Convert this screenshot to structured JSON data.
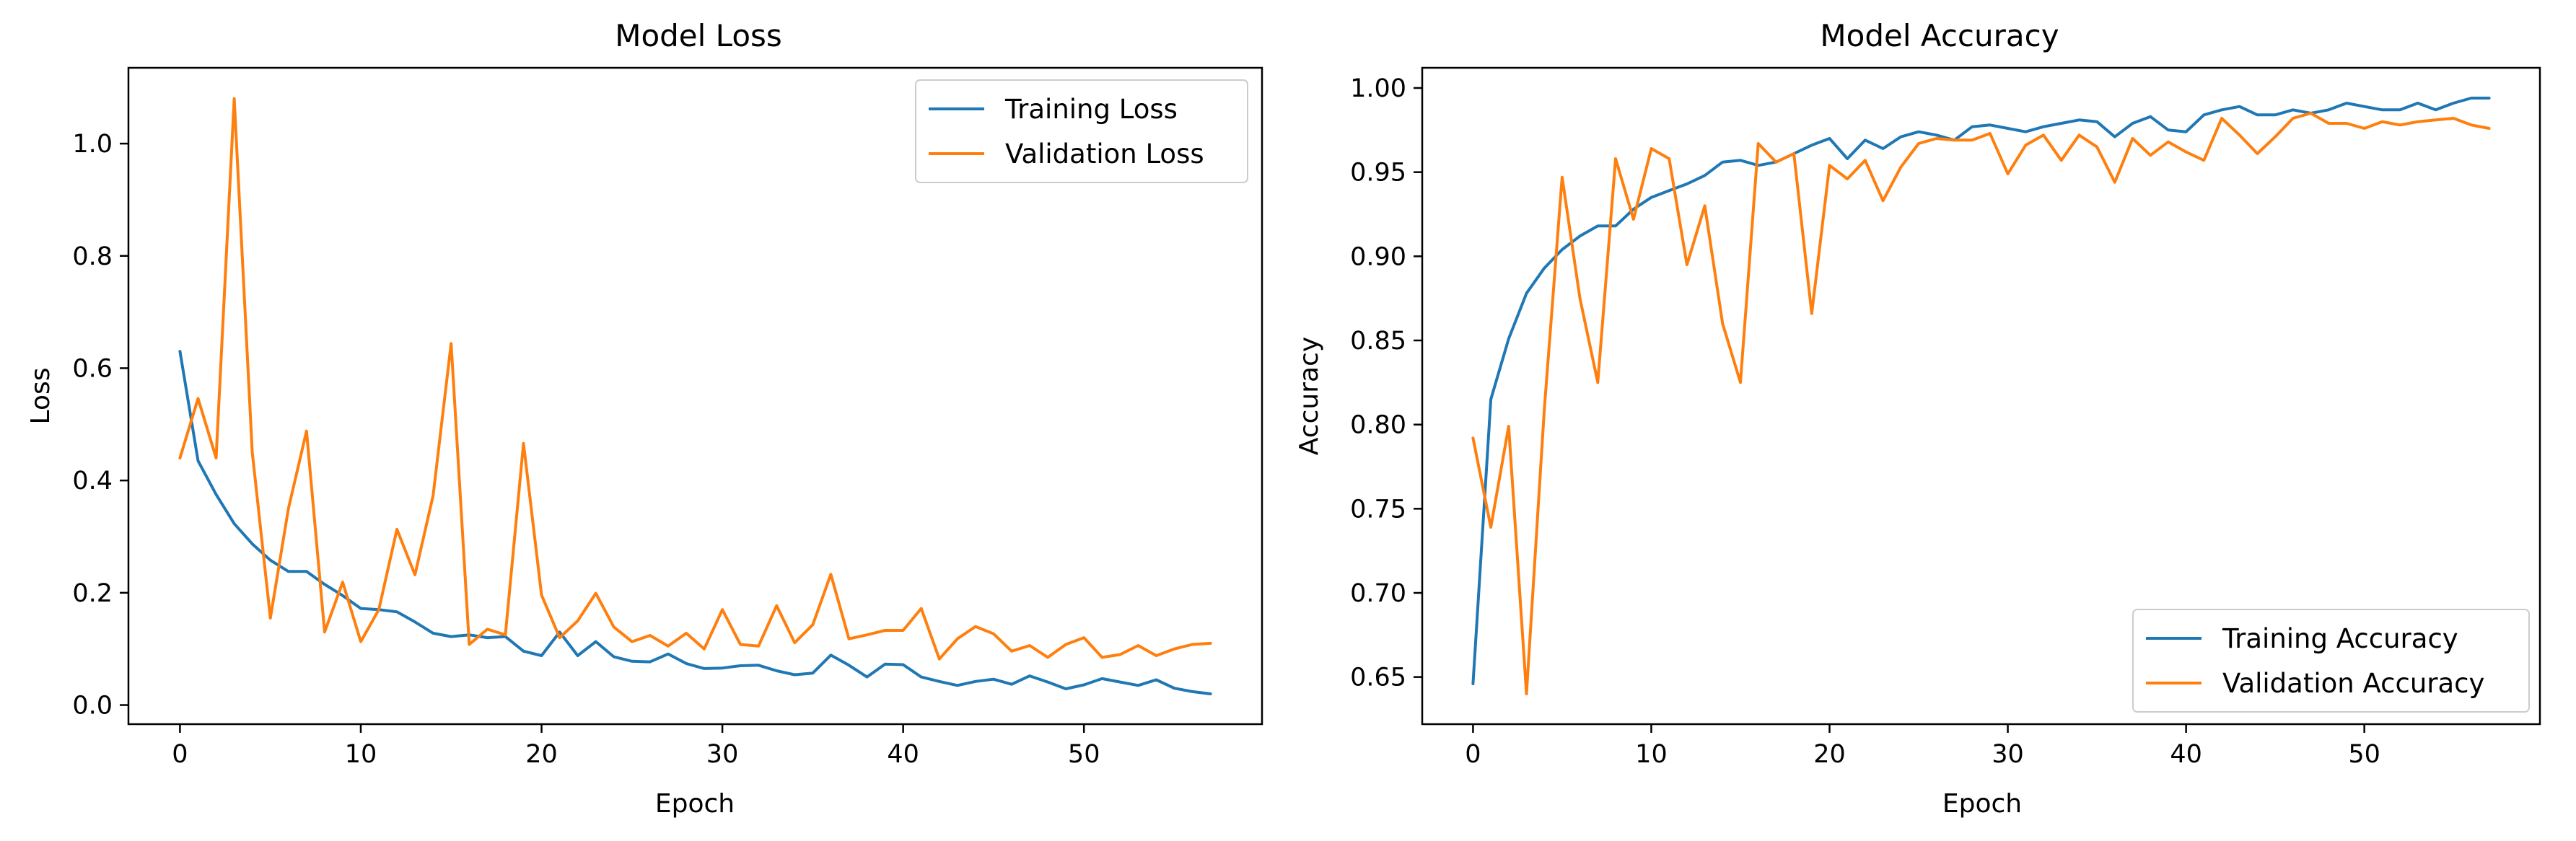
{
  "chart_data": [
    {
      "type": "line",
      "title": "Model Loss",
      "xlabel": "Epoch",
      "ylabel": "Loss",
      "xlim": [
        -2.85,
        59.85
      ],
      "ylim": [
        -0.034,
        1.135
      ],
      "xticks": [
        0,
        10,
        20,
        30,
        40,
        50
      ],
      "xtick_labels": [
        "0",
        "10",
        "20",
        "30",
        "40",
        "50"
      ],
      "yticks": [
        0.0,
        0.2,
        0.4,
        0.6,
        0.8,
        1.0
      ],
      "ytick_labels": [
        "0.0",
        "0.2",
        "0.4",
        "0.6",
        "0.8",
        "1.0"
      ],
      "legend": "top-right",
      "grid": false,
      "x": [
        0,
        1,
        2,
        3,
        4,
        5,
        6,
        7,
        8,
        9,
        10,
        11,
        12,
        13,
        14,
        15,
        16,
        17,
        18,
        19,
        20,
        21,
        22,
        23,
        24,
        25,
        26,
        27,
        28,
        29,
        30,
        31,
        32,
        33,
        34,
        35,
        36,
        37,
        38,
        39,
        40,
        41,
        42,
        43,
        44,
        45,
        46,
        47,
        48,
        49,
        50,
        51,
        52,
        53,
        54,
        55,
        56,
        57
      ],
      "series": [
        {
          "name": "Training Loss",
          "color": "#1f77b4",
          "values": [
            0.63,
            0.435,
            0.375,
            0.323,
            0.287,
            0.258,
            0.238,
            0.238,
            0.215,
            0.195,
            0.172,
            0.17,
            0.166,
            0.148,
            0.128,
            0.122,
            0.125,
            0.12,
            0.122,
            0.096,
            0.088,
            0.13,
            0.088,
            0.113,
            0.086,
            0.078,
            0.077,
            0.091,
            0.074,
            0.065,
            0.066,
            0.07,
            0.071,
            0.061,
            0.054,
            0.057,
            0.089,
            0.071,
            0.05,
            0.073,
            0.072,
            0.05,
            0.042,
            0.035,
            0.042,
            0.046,
            0.037,
            0.052,
            0.041,
            0.029,
            0.036,
            0.047,
            0.041,
            0.035,
            0.045,
            0.03,
            0.024,
            0.02
          ]
        },
        {
          "name": "Validation Loss",
          "color": "#ff7f0e",
          "values": [
            0.44,
            0.546,
            0.44,
            1.08,
            0.45,
            0.155,
            0.35,
            0.488,
            0.13,
            0.219,
            0.113,
            0.17,
            0.313,
            0.232,
            0.373,
            0.644,
            0.108,
            0.135,
            0.125,
            0.466,
            0.196,
            0.12,
            0.15,
            0.199,
            0.139,
            0.113,
            0.124,
            0.105,
            0.128,
            0.1,
            0.17,
            0.108,
            0.105,
            0.177,
            0.111,
            0.143,
            0.233,
            0.118,
            0.125,
            0.133,
            0.133,
            0.172,
            0.082,
            0.118,
            0.14,
            0.127,
            0.096,
            0.106,
            0.085,
            0.108,
            0.12,
            0.085,
            0.09,
            0.106,
            0.088,
            0.1,
            0.108,
            0.11
          ]
        }
      ]
    },
    {
      "type": "line",
      "title": "Model Accuracy",
      "xlabel": "Epoch",
      "ylabel": "Accuracy",
      "xlim": [
        -2.85,
        59.85
      ],
      "ylim": [
        0.622,
        1.012
      ],
      "xticks": [
        0,
        10,
        20,
        30,
        40,
        50
      ],
      "xtick_labels": [
        "0",
        "10",
        "20",
        "30",
        "40",
        "50"
      ],
      "yticks": [
        0.65,
        0.7,
        0.75,
        0.8,
        0.85,
        0.9,
        0.95,
        1.0
      ],
      "ytick_labels": [
        "0.65",
        "0.70",
        "0.75",
        "0.80",
        "0.85",
        "0.90",
        "0.95",
        "1.00"
      ],
      "legend": "bottom-right",
      "grid": false,
      "x": [
        0,
        1,
        2,
        3,
        4,
        5,
        6,
        7,
        8,
        9,
        10,
        11,
        12,
        13,
        14,
        15,
        16,
        17,
        18,
        19,
        20,
        21,
        22,
        23,
        24,
        25,
        26,
        27,
        28,
        29,
        30,
        31,
        32,
        33,
        34,
        35,
        36,
        37,
        38,
        39,
        40,
        41,
        42,
        43,
        44,
        45,
        46,
        47,
        48,
        49,
        50,
        51,
        52,
        53,
        54,
        55,
        56,
        57
      ],
      "series": [
        {
          "name": "Training Accuracy",
          "color": "#1f77b4",
          "values": [
            0.646,
            0.815,
            0.851,
            0.878,
            0.893,
            0.904,
            0.912,
            0.918,
            0.918,
            0.928,
            0.935,
            0.939,
            0.943,
            0.948,
            0.956,
            0.957,
            0.954,
            0.956,
            0.961,
            0.966,
            0.97,
            0.958,
            0.969,
            0.964,
            0.971,
            0.974,
            0.972,
            0.969,
            0.977,
            0.978,
            0.976,
            0.974,
            0.977,
            0.979,
            0.981,
            0.98,
            0.971,
            0.979,
            0.983,
            0.975,
            0.974,
            0.984,
            0.987,
            0.989,
            0.984,
            0.984,
            0.987,
            0.985,
            0.987,
            0.991,
            0.989,
            0.987,
            0.987,
            0.991,
            0.987,
            0.991,
            0.994,
            0.994
          ]
        },
        {
          "name": "Validation Accuracy",
          "color": "#ff7f0e",
          "values": [
            0.792,
            0.739,
            0.799,
            0.64,
            0.809,
            0.947,
            0.875,
            0.825,
            0.958,
            0.922,
            0.964,
            0.958,
            0.895,
            0.93,
            0.86,
            0.825,
            0.967,
            0.956,
            0.961,
            0.866,
            0.954,
            0.946,
            0.957,
            0.933,
            0.953,
            0.967,
            0.97,
            0.969,
            0.969,
            0.973,
            0.949,
            0.966,
            0.972,
            0.957,
            0.972,
            0.965,
            0.944,
            0.97,
            0.96,
            0.968,
            0.962,
            0.957,
            0.982,
            0.972,
            0.961,
            0.971,
            0.982,
            0.985,
            0.979,
            0.979,
            0.976,
            0.98,
            0.978,
            0.98,
            0.981,
            0.982,
            0.978,
            0.976
          ]
        }
      ]
    }
  ]
}
